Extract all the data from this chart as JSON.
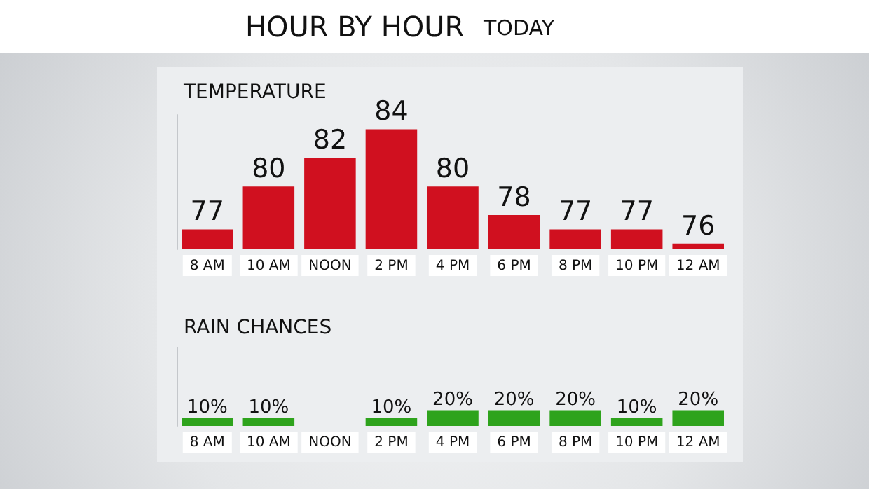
{
  "chart_data": [
    {
      "type": "bar",
      "title": "TEMPERATURE",
      "annotations": [
        "HOUR BY HOUR",
        "TODAY"
      ],
      "categories": [
        "8 AM",
        "10 AM",
        "NOON",
        "2 PM",
        "4 PM",
        "6 PM",
        "8 PM",
        "10 PM",
        "12 AM"
      ],
      "values": [
        77,
        80,
        82,
        84,
        80,
        78,
        77,
        77,
        76
      ],
      "color": "#d0101f",
      "ylim": [
        75.6,
        85
      ],
      "data_labels": true
    },
    {
      "type": "bar",
      "title": "RAIN CHANCES",
      "categories": [
        "8 AM",
        "10 AM",
        "NOON",
        "2 PM",
        "4 PM",
        "6 PM",
        "8 PM",
        "10 PM",
        "12 AM"
      ],
      "values": [
        10,
        10,
        null,
        10,
        20,
        20,
        20,
        10,
        20
      ],
      "color": "#2ea31c",
      "ylim": [
        0,
        100
      ],
      "value_labels": [
        "10%",
        "10%",
        null,
        "10%",
        "20%",
        "20%",
        "20%",
        "10%",
        "20%"
      ]
    }
  ]
}
